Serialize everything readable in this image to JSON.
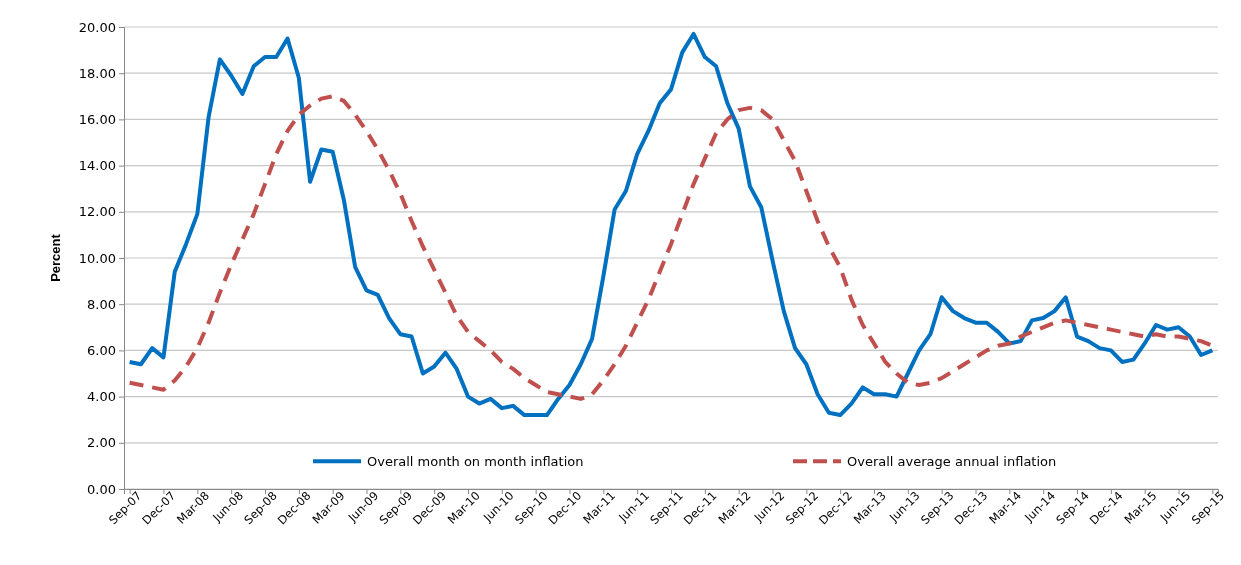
{
  "chart_data": {
    "type": "line",
    "ylabel": "Percent",
    "categories": [
      "Sep-07",
      null,
      null,
      "Dec-07",
      null,
      null,
      "Mar-08",
      null,
      null,
      "Jun-08",
      null,
      null,
      "Sep-08",
      null,
      null,
      "Dec-08",
      null,
      null,
      "Mar-09",
      null,
      null,
      "Jun-09",
      null,
      null,
      "Sep-09",
      null,
      null,
      "Dec-09",
      null,
      null,
      "Mar-10",
      null,
      null,
      "Jun-10",
      null,
      null,
      "Sep-10",
      null,
      null,
      "Dec-10",
      null,
      null,
      "Mar-11",
      null,
      null,
      "Jun-11",
      null,
      null,
      "Sep-11",
      null,
      null,
      "Dec-11",
      null,
      null,
      "Mar-12",
      null,
      null,
      "Jun-12",
      null,
      null,
      "Sep-12",
      null,
      null,
      "Dec-12",
      null,
      null,
      "Mar-13",
      null,
      null,
      "Jun-13",
      null,
      null,
      "Sep-13",
      null,
      null,
      "Dec-13",
      null,
      null,
      "Mar-14",
      null,
      null,
      "Jun-14",
      null,
      null,
      "Sep-14",
      null,
      null,
      "Dec-14",
      null,
      null,
      "Mar-15",
      null,
      null,
      "Jun-15",
      null,
      null,
      "Sep-15"
    ],
    "series": [
      {
        "name": "Overall month on month inflation",
        "color": "#0070c0",
        "line_style": "solid",
        "values": [
          5.5,
          5.4,
          6.1,
          5.7,
          9.4,
          10.6,
          11.9,
          16.1,
          18.6,
          17.9,
          17.1,
          18.3,
          18.7,
          18.7,
          19.5,
          17.8,
          13.3,
          14.7,
          14.6,
          12.5,
          9.6,
          8.6,
          8.4,
          7.4,
          6.7,
          6.6,
          5.0,
          5.3,
          5.9,
          5.2,
          4.0,
          3.7,
          3.9,
          3.5,
          3.6,
          3.2,
          3.2,
          3.2,
          3.9,
          4.5,
          5.4,
          6.5,
          9.2,
          12.1,
          12.9,
          14.5,
          15.5,
          16.7,
          17.3,
          18.9,
          19.7,
          18.7,
          18.3,
          16.7,
          15.6,
          13.1,
          12.2,
          9.9,
          7.7,
          6.1,
          5.4,
          4.1,
          3.3,
          3.2,
          3.7,
          4.4,
          4.1,
          4.1,
          4.0,
          5.0,
          6.0,
          6.7,
          8.3,
          7.7,
          7.4,
          7.2,
          7.2,
          6.8,
          6.3,
          6.4,
          7.3,
          7.4,
          7.7,
          8.3,
          6.6,
          6.4,
          6.1,
          6.0,
          5.5,
          5.6,
          6.3,
          7.1,
          6.9,
          7.0,
          6.6,
          5.8,
          6.0
        ]
      },
      {
        "name": "Overall average annual inflation",
        "color": "#c0504d",
        "line_style": "dashed",
        "values": [
          4.6,
          4.5,
          4.4,
          4.3,
          4.7,
          5.3,
          6.1,
          7.2,
          8.5,
          9.7,
          10.8,
          11.9,
          13.2,
          14.5,
          15.5,
          16.2,
          16.6,
          16.9,
          17.0,
          16.8,
          16.2,
          15.5,
          14.7,
          13.8,
          12.8,
          11.6,
          10.5,
          9.5,
          8.5,
          7.5,
          6.8,
          6.4,
          6.0,
          5.5,
          5.2,
          4.8,
          4.5,
          4.2,
          4.1,
          4.0,
          3.9,
          4.1,
          4.7,
          5.4,
          6.2,
          7.2,
          8.2,
          9.4,
          10.6,
          11.9,
          13.2,
          14.3,
          15.4,
          16.0,
          16.4,
          16.5,
          16.4,
          16.0,
          15.1,
          14.2,
          12.9,
          11.6,
          10.5,
          9.6,
          8.2,
          7.1,
          6.3,
          5.5,
          5.0,
          4.6,
          4.5,
          4.6,
          4.8,
          5.1,
          5.4,
          5.7,
          6.0,
          6.2,
          6.3,
          6.6,
          6.8,
          7.0,
          7.2,
          7.3,
          7.2,
          7.1,
          7.0,
          6.9,
          6.8,
          6.7,
          6.6,
          6.7,
          6.6,
          6.6,
          6.5,
          6.4,
          6.2
        ]
      }
    ],
    "ylim": [
      0,
      20
    ],
    "yticks": [
      {
        "value": 0,
        "label": "0.00"
      },
      {
        "value": 2,
        "label": "2.00"
      },
      {
        "value": 4,
        "label": "4.00"
      },
      {
        "value": 6,
        "label": "6.00"
      },
      {
        "value": 8,
        "label": "8.00"
      },
      {
        "value": 10,
        "label": "10.00"
      },
      {
        "value": 12,
        "label": "12.00"
      },
      {
        "value": 14,
        "label": "14.00"
      },
      {
        "value": 16,
        "label": "16.00"
      },
      {
        "value": 18,
        "label": "18.00"
      },
      {
        "value": 20,
        "label": "20.00"
      }
    ],
    "grid": "y",
    "legend": "bottom",
    "marker": "none"
  }
}
